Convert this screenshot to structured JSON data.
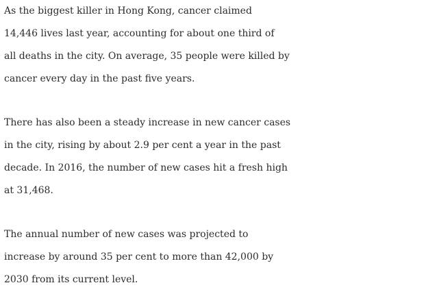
{
  "article": {
    "paragraphs": [
      {
        "lines": [
          "As the biggest killer in Hong Kong, cancer claimed",
          "14,446 lives last year, accounting for about one third of",
          "all deaths in the city. On average, 35 people were killed by",
          "cancer every day in the past five years."
        ]
      },
      {
        "lines": [
          "There has also been a steady increase in new cancer cases",
          "in the city, rising by about 2.9 per cent a year in the past",
          "decade. In 2016, the number of new cases hit a fresh high",
          "at 31,468."
        ]
      },
      {
        "lines": [
          "The annual number of new cases was projected to",
          "increase by around 35 per cent to more than 42,000 by",
          "2030 from its current level."
        ]
      }
    ]
  }
}
